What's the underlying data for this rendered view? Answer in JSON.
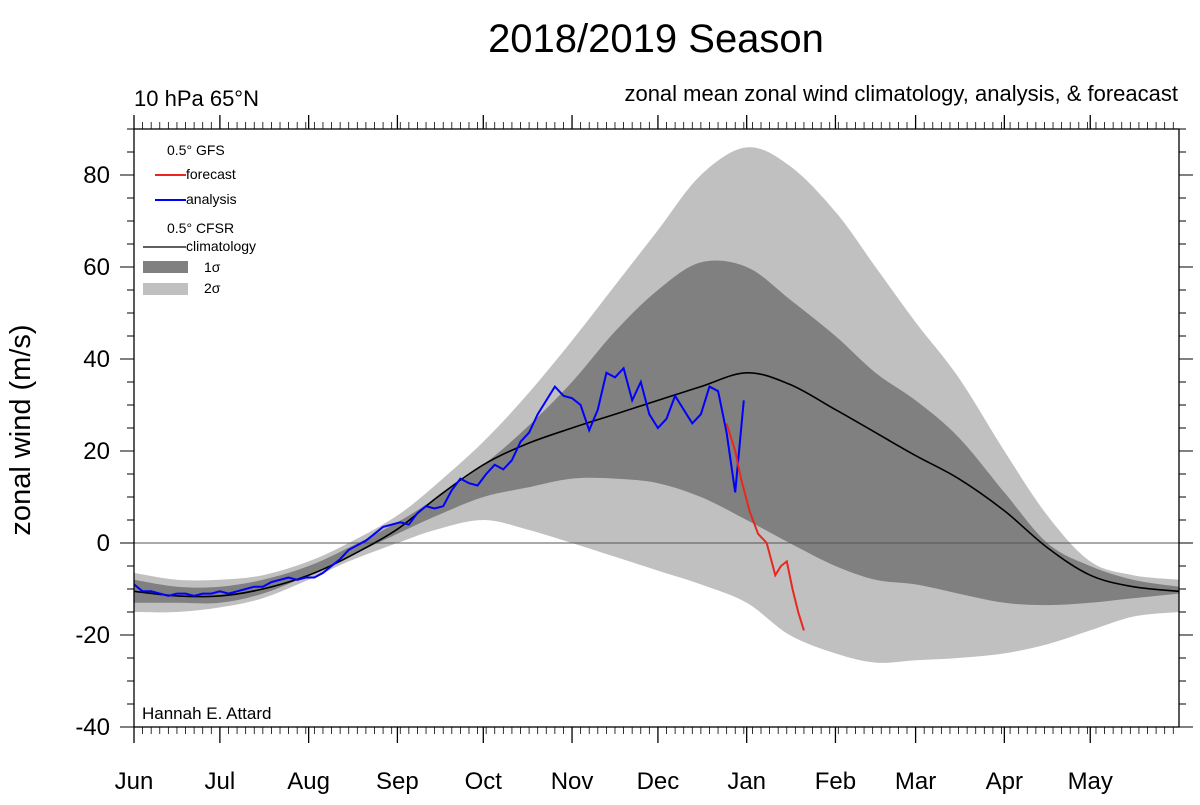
{
  "chart_data": {
    "type": "area",
    "title": "2018/2019 Season",
    "subtitle_left": "10 hPa 65°N",
    "subtitle_right": "zonal mean zonal wind climatology, analysis, & foreacast",
    "ylabel": "zonal wind (m/s)",
    "xlabel": "",
    "ylim": [
      -40,
      90
    ],
    "yticks": [
      80,
      60,
      40,
      20,
      0,
      -20,
      -40
    ],
    "xlim": [
      0,
      365
    ],
    "months": [
      {
        "label": "Jun",
        "day": 0
      },
      {
        "label": "Jul",
        "day": 30
      },
      {
        "label": "Aug",
        "day": 61
      },
      {
        "label": "Sep",
        "day": 92
      },
      {
        "label": "Oct",
        "day": 122
      },
      {
        "label": "Nov",
        "day": 153
      },
      {
        "label": "Dec",
        "day": 183
      },
      {
        "label": "Jan",
        "day": 214
      },
      {
        "label": "Feb",
        "day": 245
      },
      {
        "label": "Mar",
        "day": 273
      },
      {
        "label": "Apr",
        "day": 304
      },
      {
        "label": "May",
        "day": 334
      }
    ],
    "legend": {
      "gfs_header": "0.5° GFS",
      "forecast": "forecast",
      "analysis": "analysis",
      "cfsr_header": "0.5° CFSR",
      "climatology": "climatology",
      "sigma1": "1σ",
      "sigma2": "2σ"
    },
    "credit": "Hannah E. Attard",
    "colors": {
      "band2": "#c0c0c0",
      "band1": "#808080",
      "climatology": "#000000",
      "analysis": "#0000ff",
      "forecast": "#e8281e",
      "zero_line": "#555555"
    },
    "band_days": [
      0,
      15,
      30,
      45,
      61,
      75,
      92,
      106,
      122,
      137,
      153,
      168,
      183,
      198,
      214,
      229,
      245,
      259,
      273,
      288,
      304,
      319,
      334,
      349,
      365
    ],
    "band2_upper": [
      -6.5,
      -8,
      -8,
      -7,
      -4,
      0,
      6,
      13,
      22,
      32,
      44,
      56,
      68,
      80,
      86,
      82,
      72,
      60,
      48,
      36,
      20,
      6,
      -4,
      -7,
      -8
    ],
    "band1_upper": [
      -8,
      -9.5,
      -9.5,
      -8,
      -5,
      -1,
      4.5,
      10,
      17,
      25,
      35,
      46,
      55,
      61,
      60,
      53,
      45,
      37,
      31,
      23,
      11,
      0,
      -5,
      -8,
      -9.5
    ],
    "band1_lower": [
      -13,
      -13,
      -13,
      -11,
      -7,
      -3,
      2,
      6,
      10,
      12,
      14,
      14,
      13,
      10,
      5,
      0,
      -5,
      -8,
      -9,
      -11,
      -13,
      -13.5,
      -13,
      -12,
      -11
    ],
    "band2_lower": [
      -15,
      -15,
      -14,
      -12,
      -8,
      -4,
      0,
      3,
      5,
      3,
      0,
      -3,
      -6,
      -9,
      -13,
      -20,
      -24,
      -26,
      -25.5,
      -25,
      -24,
      -22,
      -19,
      -16,
      -15
    ],
    "climatology_days": [
      0,
      15,
      30,
      45,
      61,
      75,
      92,
      106,
      122,
      137,
      153,
      168,
      183,
      198,
      214,
      229,
      245,
      259,
      273,
      288,
      304,
      319,
      334,
      349,
      365
    ],
    "climatology": [
      -10.5,
      -11.5,
      -11.5,
      -10,
      -7,
      -3,
      3,
      10,
      17,
      21.5,
      25,
      28,
      31,
      34,
      37,
      34.5,
      29,
      24,
      19,
      14,
      7,
      -1,
      -7,
      -9.5,
      -10.5
    ],
    "analysis_days": [
      0,
      3,
      6,
      9,
      12,
      15,
      18,
      21,
      24,
      27,
      30,
      33,
      36,
      39,
      42,
      45,
      48,
      51,
      54,
      57,
      60,
      63,
      66,
      69,
      72,
      75,
      78,
      81,
      84,
      87,
      90,
      93,
      96,
      99,
      102,
      105,
      108,
      111,
      114,
      117,
      120,
      123,
      126,
      129,
      132,
      135,
      138,
      141,
      144,
      147,
      150,
      153,
      156,
      159,
      162,
      165,
      168,
      171,
      174,
      177,
      180,
      183,
      186,
      189,
      192,
      195,
      198,
      201,
      204,
      207,
      210,
      213
    ],
    "analysis": [
      -9,
      -10.5,
      -10.5,
      -11,
      -11.5,
      -11,
      -11,
      -11.5,
      -11,
      -11,
      -10.5,
      -11,
      -10.5,
      -10,
      -9.5,
      -9.5,
      -8.5,
      -8,
      -7.5,
      -8,
      -7.5,
      -7.5,
      -6.5,
      -5,
      -3.5,
      -1.5,
      -0.5,
      0.5,
      2,
      3.5,
      4,
      4.5,
      4,
      6.5,
      8,
      7.5,
      8,
      11.5,
      14,
      13,
      12.5,
      15,
      17,
      16,
      18,
      22,
      24,
      28,
      31,
      34,
      32,
      31.5,
      30,
      24.5,
      29,
      37,
      36,
      38,
      31,
      35,
      28,
      25,
      27,
      32,
      29,
      26,
      28,
      34,
      33,
      24,
      11,
      31
    ],
    "forecast_days": [
      207,
      210,
      212,
      215,
      218,
      221,
      224,
      226,
      228,
      230,
      232,
      234
    ],
    "forecast": [
      26,
      20,
      14,
      7,
      2,
      0,
      -7,
      -5,
      -4,
      -10,
      -15,
      -19
    ]
  }
}
